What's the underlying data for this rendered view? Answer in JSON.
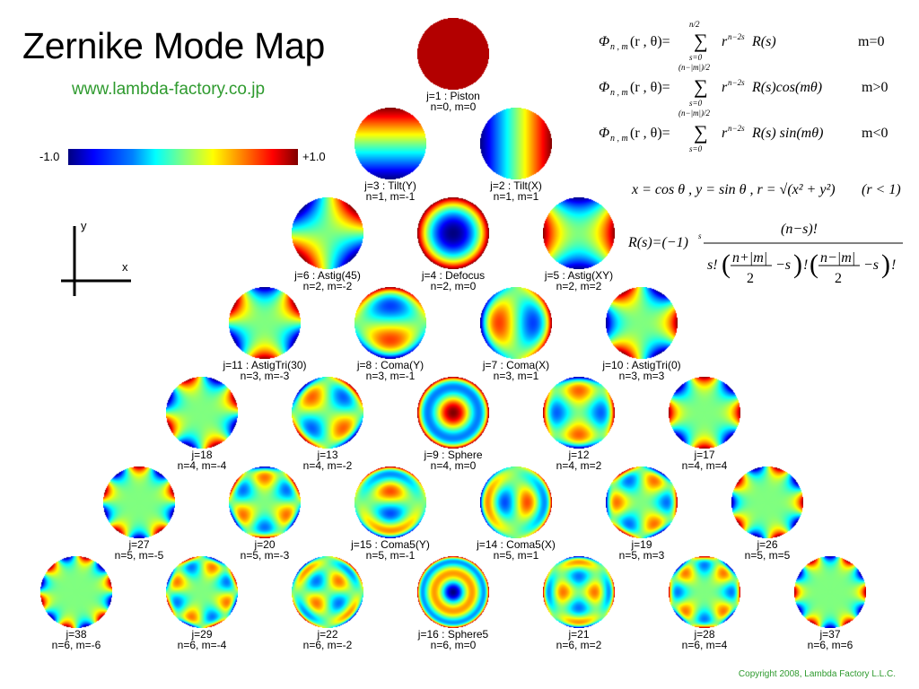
{
  "header": {
    "title": "Zernike Mode Map",
    "url": "www.lambda-factory.co.jp"
  },
  "colorbar": {
    "min_label": "-1.0",
    "max_label": "+1.0"
  },
  "axes_legend": {
    "x_label": "x",
    "y_label": "y"
  },
  "modes": [
    {
      "j": 1,
      "n": 0,
      "m": 0,
      "row": 0,
      "col": 3,
      "name_line": "j=1 : Piston",
      "nm_line": "n=0, m=0"
    },
    {
      "j": 3,
      "n": 1,
      "m": -1,
      "row": 1,
      "col": 2,
      "name_line": "j=3 : Tilt(Y)",
      "nm_line": "n=1, m=-1"
    },
    {
      "j": 2,
      "n": 1,
      "m": 1,
      "row": 1,
      "col": 4,
      "name_line": "j=2 : Tilt(X)",
      "nm_line": "n=1, m=1"
    },
    {
      "j": 6,
      "n": 2,
      "m": -2,
      "row": 2,
      "col": 1,
      "name_line": "j=6 : Astig(45)",
      "nm_line": "n=2, m=-2"
    },
    {
      "j": 4,
      "n": 2,
      "m": 0,
      "row": 2,
      "col": 3,
      "name_line": "j=4 : Defocus",
      "nm_line": "n=2, m=0"
    },
    {
      "j": 5,
      "n": 2,
      "m": 2,
      "row": 2,
      "col": 5,
      "name_line": "j=5 : Astig(XY)",
      "nm_line": "n=2, m=2"
    },
    {
      "j": 11,
      "n": 3,
      "m": -3,
      "row": 3,
      "col": 0,
      "name_line": "j=11 : AstigTri(30)",
      "nm_line": "n=3, m=-3"
    },
    {
      "j": 8,
      "n": 3,
      "m": -1,
      "row": 3,
      "col": 2,
      "name_line": "j=8 : Coma(Y)",
      "nm_line": "n=3, m=-1"
    },
    {
      "j": 7,
      "n": 3,
      "m": 1,
      "row": 3,
      "col": 4,
      "name_line": "j=7 : Coma(X)",
      "nm_line": "n=3, m=1"
    },
    {
      "j": 10,
      "n": 3,
      "m": 3,
      "row": 3,
      "col": 6,
      "name_line": "j=10 : AstigTri(0)",
      "nm_line": "n=3, m=3"
    },
    {
      "j": 18,
      "n": 4,
      "m": -4,
      "row": 4,
      "col": -1,
      "name_line": "j=18",
      "nm_line": "n=4, m=-4"
    },
    {
      "j": 13,
      "n": 4,
      "m": -2,
      "row": 4,
      "col": 1,
      "name_line": "j=13",
      "nm_line": "n=4, m=-2"
    },
    {
      "j": 9,
      "n": 4,
      "m": 0,
      "row": 4,
      "col": 3,
      "name_line": "j=9 : Sphere",
      "nm_line": "n=4, m=0"
    },
    {
      "j": 12,
      "n": 4,
      "m": 2,
      "row": 4,
      "col": 5,
      "name_line": "j=12",
      "nm_line": "n=4, m=2"
    },
    {
      "j": 17,
      "n": 4,
      "m": 4,
      "row": 4,
      "col": 7,
      "name_line": "j=17",
      "nm_line": "n=4, m=4"
    },
    {
      "j": 27,
      "n": 5,
      "m": -5,
      "row": 5,
      "col": -2,
      "name_line": "j=27",
      "nm_line": "n=5, m=-5"
    },
    {
      "j": 20,
      "n": 5,
      "m": -3,
      "row": 5,
      "col": 0,
      "name_line": "j=20",
      "nm_line": "n=5, m=-3"
    },
    {
      "j": 15,
      "n": 5,
      "m": -1,
      "row": 5,
      "col": 2,
      "name_line": "j=15 : Coma5(Y)",
      "nm_line": "n=5, m=-1"
    },
    {
      "j": 14,
      "n": 5,
      "m": 1,
      "row": 5,
      "col": 4,
      "name_line": "j=14 : Coma5(X)",
      "nm_line": "n=5, m=1"
    },
    {
      "j": 19,
      "n": 5,
      "m": 3,
      "row": 5,
      "col": 6,
      "name_line": "j=19",
      "nm_line": "n=5, m=3"
    },
    {
      "j": 26,
      "n": 5,
      "m": 5,
      "row": 5,
      "col": 8,
      "name_line": "j=26",
      "nm_line": "n=5, m=5"
    },
    {
      "j": 38,
      "n": 6,
      "m": -6,
      "row": 6,
      "col": -3,
      "name_line": "j=38",
      "nm_line": "n=6, m=-6"
    },
    {
      "j": 29,
      "n": 6,
      "m": -4,
      "row": 6,
      "col": -1,
      "name_line": "j=29",
      "nm_line": "n=6, m=-4"
    },
    {
      "j": 22,
      "n": 6,
      "m": -2,
      "row": 6,
      "col": 1,
      "name_line": "j=22",
      "nm_line": "n=6, m=-2"
    },
    {
      "j": 16,
      "n": 6,
      "m": 0,
      "row": 6,
      "col": 3,
      "name_line": "j=16 : Sphere5",
      "nm_line": "n=6, m=0"
    },
    {
      "j": 21,
      "n": 6,
      "m": 2,
      "row": 6,
      "col": 5,
      "name_line": "j=21",
      "nm_line": "n=6, m=2"
    },
    {
      "j": 28,
      "n": 6,
      "m": 4,
      "row": 6,
      "col": 7,
      "name_line": "j=28",
      "nm_line": "n=6, m=4"
    },
    {
      "j": 37,
      "n": 6,
      "m": 6,
      "row": 6,
      "col": 9,
      "name_line": "j=37",
      "nm_line": "n=6, m=6"
    }
  ],
  "formulas": {
    "cond_m0": "m=0",
    "cond_mpos": "m>0",
    "cond_mneg": "m<0",
    "def_xy": "x = cos θ , y = sin θ ,  r = √(x² + y²)",
    "def_r": "(r < 1)"
  },
  "footer": {
    "copyright": "Copyright 2008, Lambda Factory L.L.C."
  }
}
